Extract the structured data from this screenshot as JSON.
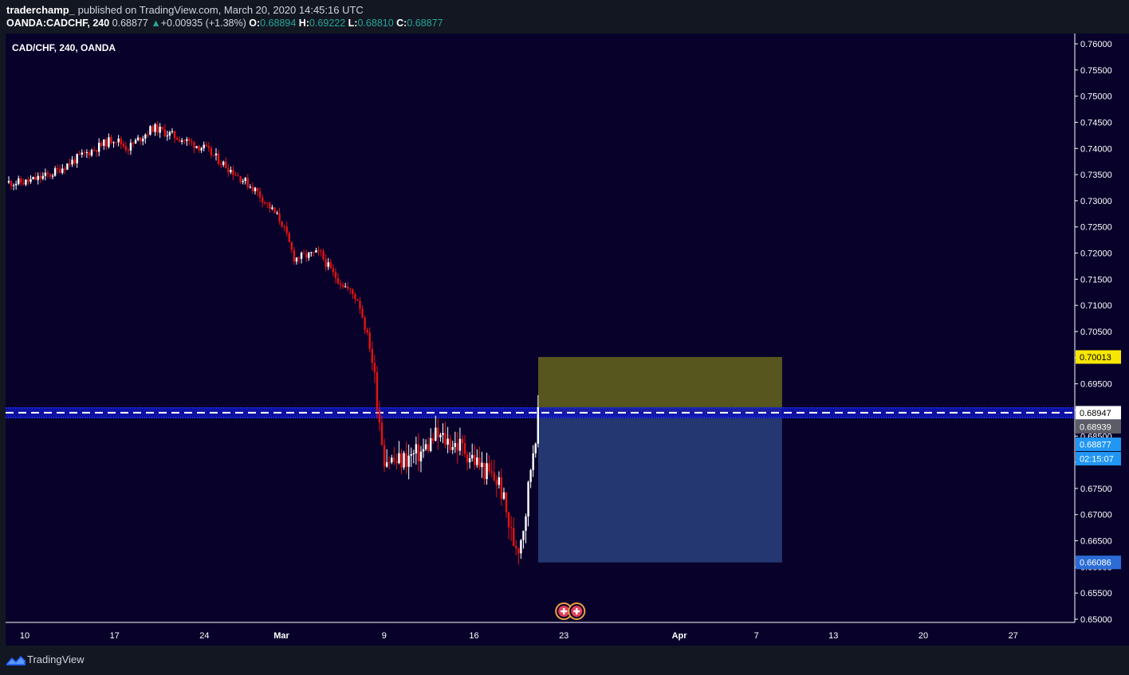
{
  "header": {
    "author": "traderchamp_",
    "published_text": "published on TradingView.com, March 20, 2020 14:45:16 UTC",
    "symbol": "OANDA:CADCHF, 240",
    "last": "0.68877",
    "change_arrow": "▲",
    "change": "+0.00935 (+1.38%)",
    "o_label": "O:",
    "o_value": "0.68894",
    "h_label": "H:",
    "h_value": "0.69222",
    "l_label": "L:",
    "l_value": "0.68810",
    "c_label": "C:",
    "c_value": "0.68877"
  },
  "chart_title": "CAD/CHF, 240, OANDA",
  "footer": {
    "brand": "TradingView",
    "logo_icon": "tradingview-logo-icon"
  },
  "colors": {
    "background": "#08022b",
    "up_candle": "#ffffff",
    "down_candle": "#e2140f",
    "profit_zone": "#5c5b1e",
    "loss_zone": "#263a75",
    "level_band": "#0d13b8",
    "target_label": "#f7e600",
    "stop_label": "#2b6cd6",
    "current_price_label": "#2196f3"
  },
  "chart_data": {
    "type": "candlestick",
    "timeframe": "240",
    "yaxis_ticks": [
      "0.65000",
      "0.65500",
      "0.66000",
      "0.66500",
      "0.67000",
      "0.67500",
      "0.68000",
      "0.68500",
      "0.69000",
      "0.69500",
      "0.70000",
      "0.70500",
      "0.71000",
      "0.71500",
      "0.72000",
      "0.72500",
      "0.73000",
      "0.73500",
      "0.74000",
      "0.74500",
      "0.75000",
      "0.75500",
      "0.76000"
    ],
    "ylim": [
      0.6495,
      0.7615
    ],
    "xaxis_labels": [
      {
        "label": "10",
        "date": "2020-02-10"
      },
      {
        "label": "17",
        "date": "2020-02-17"
      },
      {
        "label": "24",
        "date": "2020-02-24"
      },
      {
        "label": "Mar",
        "date": "2020-03-01"
      },
      {
        "label": "9",
        "date": "2020-03-09"
      },
      {
        "label": "16",
        "date": "2020-03-16"
      },
      {
        "label": "23",
        "date": "2020-03-23"
      },
      {
        "label": "Apr",
        "date": "2020-04-01"
      },
      {
        "label": "7",
        "date": "2020-04-07"
      },
      {
        "label": "13",
        "date": "2020-04-13"
      },
      {
        "label": "20",
        "date": "2020-04-20"
      },
      {
        "label": "27",
        "date": "2020-04-27"
      }
    ],
    "price_path": [
      {
        "date": "2020-02-10",
        "close": 0.7335
      },
      {
        "date": "2020-02-12",
        "close": 0.735
      },
      {
        "date": "2020-02-14",
        "close": 0.738
      },
      {
        "date": "2020-02-17",
        "close": 0.742
      },
      {
        "date": "2020-02-18",
        "close": 0.74
      },
      {
        "date": "2020-02-20",
        "close": 0.744
      },
      {
        "date": "2020-02-22",
        "close": 0.742
      },
      {
        "date": "2020-02-24",
        "close": 0.74
      },
      {
        "date": "2020-02-26",
        "close": 0.736
      },
      {
        "date": "2020-02-28",
        "close": 0.732
      },
      {
        "date": "2020-03-01",
        "close": 0.726
      },
      {
        "date": "2020-03-02",
        "close": 0.719
      },
      {
        "date": "2020-03-04",
        "close": 0.72
      },
      {
        "date": "2020-03-05",
        "close": 0.716
      },
      {
        "date": "2020-03-07",
        "close": 0.711
      },
      {
        "date": "2020-03-08",
        "close": 0.701
      },
      {
        "date": "2020-03-09",
        "close": 0.681
      },
      {
        "date": "2020-03-10",
        "close": 0.68
      },
      {
        "date": "2020-03-12",
        "close": 0.682
      },
      {
        "date": "2020-03-13",
        "close": 0.685
      },
      {
        "date": "2020-03-15",
        "close": 0.683
      },
      {
        "date": "2020-03-17",
        "close": 0.678
      },
      {
        "date": "2020-03-18",
        "close": 0.676
      },
      {
        "date": "2020-03-19",
        "close": 0.665
      },
      {
        "date": "2020-03-19T12:00",
        "close": 0.664
      },
      {
        "date": "2020-03-20",
        "close": 0.67
      },
      {
        "date": "2020-03-20T12:00",
        "close": 0.681
      },
      {
        "date": "2020-03-21",
        "close": 0.6888
      }
    ],
    "levels": {
      "horizontal_line": 0.68947,
      "level_price": 0.68939,
      "current_price": 0.68877,
      "countdown": "02:15:07",
      "target_price": 0.70013,
      "stop_price": 0.66086
    },
    "price_labels": [
      "0.70013",
      "0.68947",
      "0.68939",
      "0.68877",
      "02:15:07",
      "0.66086"
    ],
    "position_tool": {
      "start_date": "2020-03-21",
      "end_date": "2020-04-09",
      "entry": 0.68947,
      "target": 0.70013,
      "stop": 0.66086
    },
    "events": [
      {
        "date": "2020-03-23",
        "icon": "event-flag-icon"
      },
      {
        "date": "2020-03-24",
        "icon": "event-flag-icon"
      }
    ]
  }
}
